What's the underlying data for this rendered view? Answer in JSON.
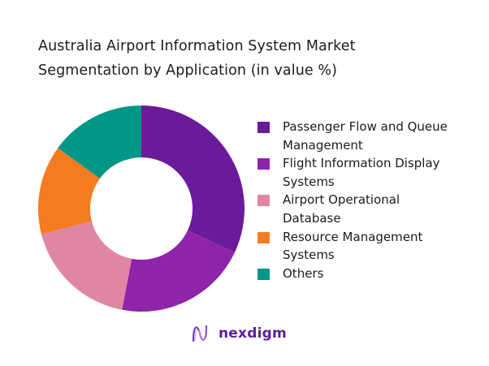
{
  "title": {
    "line1": "Australia Airport Information System Market",
    "line2": "Segmentation by Application (in value %)"
  },
  "chart_data": {
    "type": "pie",
    "variant": "donut",
    "title": "Australia Airport Information System Market Segmentation by Application (in value %)",
    "categories": [
      "Passenger Flow and Queue Management",
      "Flight Information Display Systems",
      "Airport Operational Database",
      "Resource Management Systems",
      "Others"
    ],
    "values": [
      32,
      21,
      18,
      14,
      15
    ],
    "colors": [
      "#6a1b9a",
      "#8e24aa",
      "#df87a2",
      "#f47c20",
      "#009688"
    ],
    "start_angle_deg": 0,
    "direction": "clockwise",
    "legend_position": "right",
    "data_labels": false
  },
  "legend": {
    "items": [
      {
        "lines": [
          "Passenger Flow and Queue",
          "Management"
        ],
        "color": "#6a1b9a"
      },
      {
        "lines": [
          "Flight Information Display",
          "Systems"
        ],
        "color": "#8e24aa"
      },
      {
        "lines": [
          "Airport Operational",
          "Database"
        ],
        "color": "#df87a2"
      },
      {
        "lines": [
          "Resource Management",
          "Systems"
        ],
        "color": "#f47c20"
      },
      {
        "lines": [
          "Others"
        ],
        "color": "#009688"
      }
    ]
  },
  "brand": {
    "name": "nexdigm",
    "color": "#5b1f97"
  }
}
